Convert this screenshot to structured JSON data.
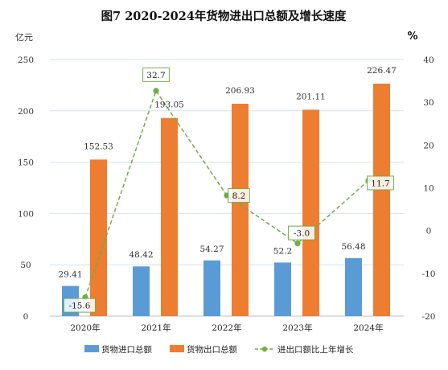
{
  "chart_data": {
    "type": "bar",
    "title": "图7   2020-2024年货物进出口总额及增长速度",
    "y_left_unit": "亿元",
    "y_right_unit": "%",
    "categories": [
      "2020年",
      "2021年",
      "2022年",
      "2023年",
      "2024年"
    ],
    "ylim_left": [
      0,
      250
    ],
    "yticks_left": [
      0,
      50,
      100,
      150,
      200,
      250
    ],
    "ylim_right": [
      -20,
      40
    ],
    "yticks_right": [
      -20,
      -10,
      0,
      10,
      20,
      30,
      40
    ],
    "grid": true,
    "legend_position": "bottom",
    "series": [
      {
        "name": "货物进口总额",
        "kind": "bar",
        "axis": "left",
        "color": "#5b9bd5",
        "values": [
          29.41,
          48.42,
          54.27,
          52.2,
          56.48
        ],
        "labels": [
          "29.41",
          "48.42",
          "54.27",
          "52.2",
          "56.48"
        ]
      },
      {
        "name": "货物出口总额",
        "kind": "bar",
        "axis": "left",
        "color": "#ed7d31",
        "values": [
          152.53,
          193.05,
          206.93,
          201.11,
          226.47
        ],
        "labels": [
          "152.53",
          "193.05",
          "206.93",
          "201.11",
          "226.47"
        ]
      },
      {
        "name": "进出口额比上年增长",
        "kind": "line",
        "axis": "right",
        "color": "#70ad47",
        "line_style": "dashed",
        "values": [
          -15.6,
          32.7,
          8.2,
          -3.0,
          11.7
        ],
        "labels": [
          "-15.6",
          "32.7",
          "8.2",
          "-3.0",
          "11.7"
        ]
      }
    ]
  }
}
